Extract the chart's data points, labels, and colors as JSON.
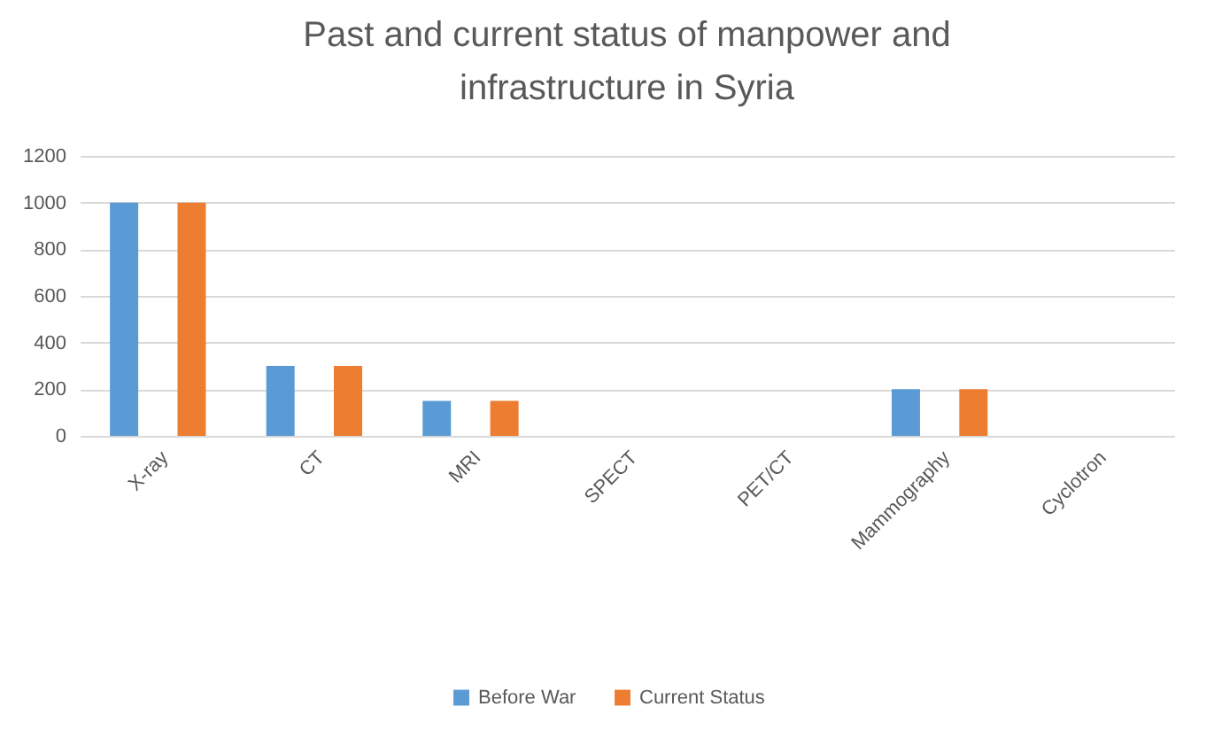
{
  "chart_data": {
    "type": "bar",
    "title": "Past and current status of manpower and infrastructure in Syria",
    "categories": [
      "X-ray",
      "CT",
      "MRI",
      "SPECT",
      "PET/CT",
      "Mammography",
      "Cyclotron"
    ],
    "series": [
      {
        "name": "Before War",
        "color": "#5b9bd5",
        "values": [
          1000,
          300,
          150,
          0,
          0,
          200,
          0
        ]
      },
      {
        "name": "Current Status",
        "color": "#ed7d31",
        "values": [
          1000,
          300,
          150,
          0,
          0,
          200,
          0
        ]
      }
    ],
    "ylim": [
      0,
      1200
    ],
    "yticks": [
      0,
      200,
      400,
      600,
      800,
      1000,
      1200
    ],
    "grid": "y",
    "legend": "bottom"
  }
}
